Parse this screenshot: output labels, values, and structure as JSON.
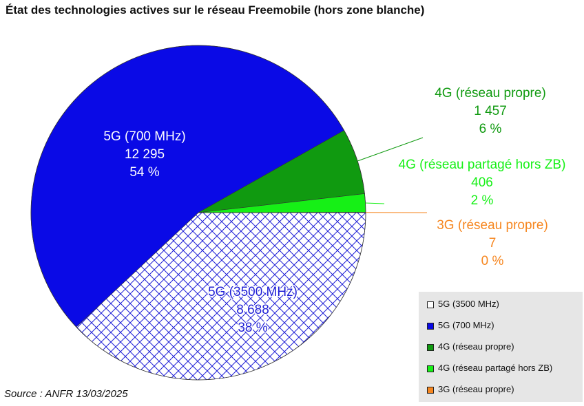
{
  "chart_data": {
    "type": "pie",
    "title": "État des technologies actives sur le réseau Freemobile (hors zone blanche)",
    "source": "Source : ANFR 13/03/2025",
    "series": [
      {
        "name": "5G (3500 MHz)",
        "value": 8688,
        "value_label": "8 688",
        "percent_label": "38 %",
        "color": "#ffffff",
        "pattern": "crosshatch",
        "pattern_color": "#1f1fd6",
        "label_color": "#1f1fd6"
      },
      {
        "name": "5G (700 MHz)",
        "value": 12295,
        "value_label": "12 295",
        "percent_label": "54 %",
        "color": "#0a0ae6",
        "label_color": "#ffffff"
      },
      {
        "name": "4G (réseau propre)",
        "value": 1457,
        "value_label": "1 457",
        "percent_label": "6 %",
        "color": "#109a10",
        "label_color": "#109a10"
      },
      {
        "name": "4G (réseau partagé hors ZB)",
        "value": 406,
        "value_label": "406",
        "percent_label": "2 %",
        "color": "#16f016",
        "label_color": "#16f016"
      },
      {
        "name": "3G (réseau propre)",
        "value": 7,
        "value_label": "7",
        "percent_label": "0 %",
        "color": "#f6861f",
        "label_color": "#f6861f"
      }
    ],
    "legend_position": "bottom-right"
  }
}
